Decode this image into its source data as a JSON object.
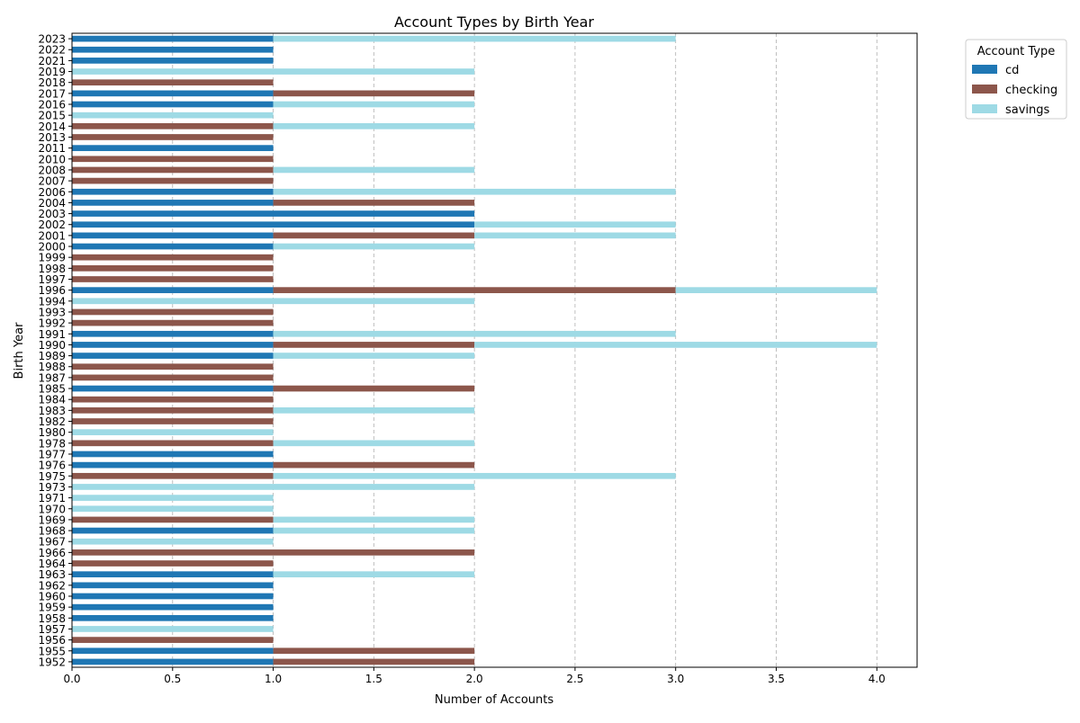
{
  "chart_data": {
    "type": "bar",
    "orientation": "horizontal",
    "stacked": true,
    "title": "Account Types by Birth Year",
    "xlabel": "Number of Accounts",
    "ylabel": "Birth Year",
    "xlim": [
      0,
      4.2
    ],
    "xticks": [
      "0.0",
      "0.5",
      "1.0",
      "1.5",
      "2.0",
      "2.5",
      "3.0",
      "3.5",
      "4.0"
    ],
    "xtick_values": [
      0,
      0.5,
      1,
      1.5,
      2,
      2.5,
      3,
      3.5,
      4
    ],
    "grid": "x-dashed",
    "legend": {
      "title": "Account Type",
      "placement": "top-right-outside"
    },
    "categories": [
      "1952",
      "1955",
      "1956",
      "1957",
      "1958",
      "1959",
      "1960",
      "1962",
      "1963",
      "1964",
      "1966",
      "1967",
      "1968",
      "1969",
      "1970",
      "1971",
      "1973",
      "1975",
      "1976",
      "1977",
      "1978",
      "1980",
      "1982",
      "1983",
      "1984",
      "1985",
      "1987",
      "1988",
      "1989",
      "1990",
      "1991",
      "1992",
      "1993",
      "1994",
      "1996",
      "1997",
      "1998",
      "1999",
      "2000",
      "2001",
      "2002",
      "2003",
      "2004",
      "2006",
      "2007",
      "2008",
      "2010",
      "2011",
      "2013",
      "2014",
      "2015",
      "2016",
      "2017",
      "2018",
      "2019",
      "2021",
      "2022",
      "2023"
    ],
    "series": [
      {
        "name": "cd",
        "color": "#1f77b4",
        "values": [
          1,
          1,
          0,
          0,
          1,
          1,
          1,
          1,
          1,
          0,
          0,
          0,
          1,
          0,
          0,
          0,
          0,
          0,
          1,
          1,
          0,
          0,
          0,
          0,
          0,
          1,
          0,
          0,
          1,
          1,
          1,
          0,
          0,
          0,
          1,
          0,
          0,
          0,
          1,
          1,
          2,
          2,
          1,
          1,
          0,
          0,
          0,
          1,
          0,
          0,
          0,
          1,
          1,
          0,
          0,
          1,
          1,
          1
        ]
      },
      {
        "name": "checking",
        "color": "#8c564b",
        "values": [
          1,
          1,
          1,
          0,
          0,
          0,
          0,
          0,
          0,
          1,
          2,
          0,
          0,
          1,
          0,
          0,
          0,
          1,
          1,
          0,
          1,
          0,
          1,
          1,
          1,
          1,
          1,
          1,
          0,
          1,
          0,
          1,
          1,
          0,
          2,
          1,
          1,
          1,
          0,
          1,
          0,
          0,
          1,
          0,
          1,
          1,
          1,
          0,
          1,
          1,
          0,
          0,
          1,
          1,
          0,
          0,
          0,
          0
        ]
      },
      {
        "name": "savings",
        "color": "#9edae5",
        "values": [
          0,
          0,
          0,
          1,
          0,
          0,
          0,
          0,
          1,
          0,
          0,
          1,
          1,
          1,
          1,
          1,
          2,
          2,
          0,
          0,
          1,
          1,
          0,
          1,
          0,
          0,
          0,
          0,
          1,
          2,
          2,
          0,
          0,
          2,
          1,
          0,
          0,
          0,
          1,
          1,
          1,
          0,
          0,
          2,
          0,
          1,
          0,
          0,
          0,
          1,
          1,
          1,
          0,
          0,
          2,
          0,
          0,
          2
        ]
      }
    ]
  }
}
